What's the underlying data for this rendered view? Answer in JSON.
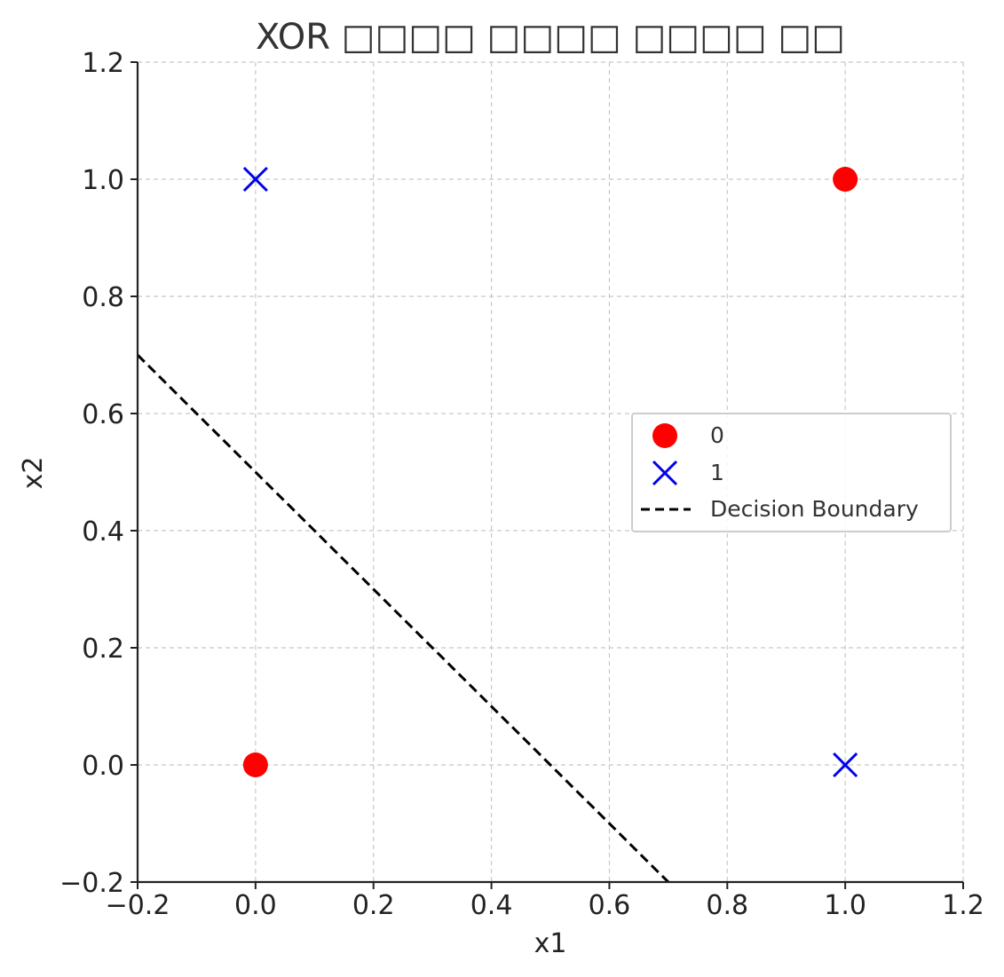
{
  "chart_data": {
    "type": "scatter",
    "title": "XOR □□□□ □□□□ □□□□ □□",
    "xlabel": "x1",
    "ylabel": "x2",
    "xlim": [
      -0.2,
      1.2
    ],
    "ylim": [
      -0.2,
      1.2
    ],
    "xticks": [
      -0.2,
      0.0,
      0.2,
      0.4,
      0.6,
      0.8,
      1.0,
      1.2
    ],
    "yticks": [
      -0.2,
      0.0,
      0.2,
      0.4,
      0.6,
      0.8,
      1.0,
      1.2
    ],
    "xtick_labels": [
      "−0.2",
      "0.0",
      "0.2",
      "0.4",
      "0.6",
      "0.8",
      "1.0",
      "1.2"
    ],
    "ytick_labels": [
      "−0.2",
      "0.0",
      "0.2",
      "0.4",
      "0.6",
      "0.8",
      "1.0",
      "1.2"
    ],
    "grid": true,
    "legend_position": "center-right",
    "series": [
      {
        "name": "0",
        "marker": "circle",
        "color": "#ff0000",
        "points": [
          {
            "x": 0,
            "y": 0
          },
          {
            "x": 1,
            "y": 1
          }
        ]
      },
      {
        "name": "1",
        "marker": "x",
        "color": "#0000ee",
        "points": [
          {
            "x": 0,
            "y": 1
          },
          {
            "x": 1,
            "y": 0
          }
        ]
      }
    ],
    "lines": [
      {
        "name": "Decision Boundary",
        "style": "dashed",
        "color": "#000000",
        "points": [
          {
            "x": -0.2,
            "y": 0.7
          },
          {
            "x": 0.7,
            "y": -0.2
          }
        ]
      }
    ]
  }
}
